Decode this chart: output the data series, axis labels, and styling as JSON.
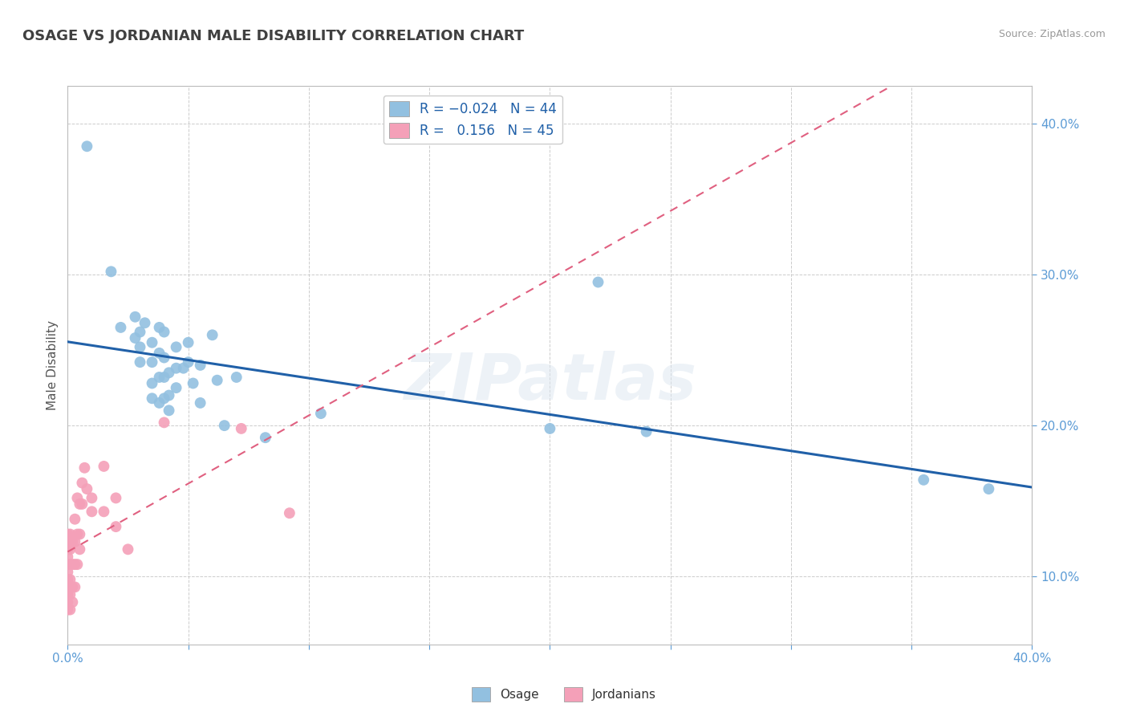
{
  "title": "OSAGE VS JORDANIAN MALE DISABILITY CORRELATION CHART",
  "source": "Source: ZipAtlas.com",
  "ylabel": "Male Disability",
  "xmin": 0.0,
  "xmax": 0.4,
  "ymin": 0.055,
  "ymax": 0.425,
  "osage_color": "#92c0e0",
  "jordanian_color": "#f4a0b8",
  "trend_osage_color": "#2060a8",
  "trend_jordan_color": "#e06080",
  "watermark": "ZIPatlas",
  "osage_points": [
    [
      0.008,
      0.385
    ],
    [
      0.018,
      0.302
    ],
    [
      0.022,
      0.265
    ],
    [
      0.028,
      0.272
    ],
    [
      0.028,
      0.258
    ],
    [
      0.03,
      0.262
    ],
    [
      0.03,
      0.252
    ],
    [
      0.03,
      0.242
    ],
    [
      0.032,
      0.268
    ],
    [
      0.035,
      0.255
    ],
    [
      0.035,
      0.242
    ],
    [
      0.035,
      0.228
    ],
    [
      0.035,
      0.218
    ],
    [
      0.038,
      0.265
    ],
    [
      0.038,
      0.248
    ],
    [
      0.038,
      0.232
    ],
    [
      0.038,
      0.215
    ],
    [
      0.04,
      0.262
    ],
    [
      0.04,
      0.245
    ],
    [
      0.04,
      0.232
    ],
    [
      0.04,
      0.218
    ],
    [
      0.042,
      0.235
    ],
    [
      0.042,
      0.22
    ],
    [
      0.042,
      0.21
    ],
    [
      0.045,
      0.252
    ],
    [
      0.045,
      0.238
    ],
    [
      0.045,
      0.225
    ],
    [
      0.048,
      0.238
    ],
    [
      0.05,
      0.255
    ],
    [
      0.05,
      0.242
    ],
    [
      0.052,
      0.228
    ],
    [
      0.055,
      0.24
    ],
    [
      0.055,
      0.215
    ],
    [
      0.06,
      0.26
    ],
    [
      0.062,
      0.23
    ],
    [
      0.065,
      0.2
    ],
    [
      0.07,
      0.232
    ],
    [
      0.082,
      0.192
    ],
    [
      0.105,
      0.208
    ],
    [
      0.2,
      0.198
    ],
    [
      0.22,
      0.295
    ],
    [
      0.24,
      0.196
    ],
    [
      0.355,
      0.164
    ],
    [
      0.382,
      0.158
    ]
  ],
  "jordanian_points": [
    [
      0.0,
      0.128
    ],
    [
      0.0,
      0.122
    ],
    [
      0.0,
      0.118
    ],
    [
      0.0,
      0.113
    ],
    [
      0.0,
      0.108
    ],
    [
      0.0,
      0.103
    ],
    [
      0.0,
      0.098
    ],
    [
      0.0,
      0.093
    ],
    [
      0.0,
      0.088
    ],
    [
      0.0,
      0.083
    ],
    [
      0.0,
      0.078
    ],
    [
      0.001,
      0.128
    ],
    [
      0.001,
      0.118
    ],
    [
      0.001,
      0.108
    ],
    [
      0.001,
      0.098
    ],
    [
      0.001,
      0.088
    ],
    [
      0.001,
      0.078
    ],
    [
      0.002,
      0.123
    ],
    [
      0.002,
      0.108
    ],
    [
      0.002,
      0.093
    ],
    [
      0.002,
      0.083
    ],
    [
      0.003,
      0.138
    ],
    [
      0.003,
      0.123
    ],
    [
      0.003,
      0.108
    ],
    [
      0.003,
      0.093
    ],
    [
      0.004,
      0.152
    ],
    [
      0.004,
      0.128
    ],
    [
      0.004,
      0.108
    ],
    [
      0.005,
      0.148
    ],
    [
      0.005,
      0.128
    ],
    [
      0.005,
      0.118
    ],
    [
      0.006,
      0.162
    ],
    [
      0.006,
      0.148
    ],
    [
      0.007,
      0.172
    ],
    [
      0.008,
      0.158
    ],
    [
      0.01,
      0.152
    ],
    [
      0.01,
      0.143
    ],
    [
      0.015,
      0.173
    ],
    [
      0.015,
      0.143
    ],
    [
      0.02,
      0.152
    ],
    [
      0.02,
      0.133
    ],
    [
      0.025,
      0.118
    ],
    [
      0.04,
      0.202
    ],
    [
      0.072,
      0.198
    ],
    [
      0.092,
      0.142
    ]
  ]
}
